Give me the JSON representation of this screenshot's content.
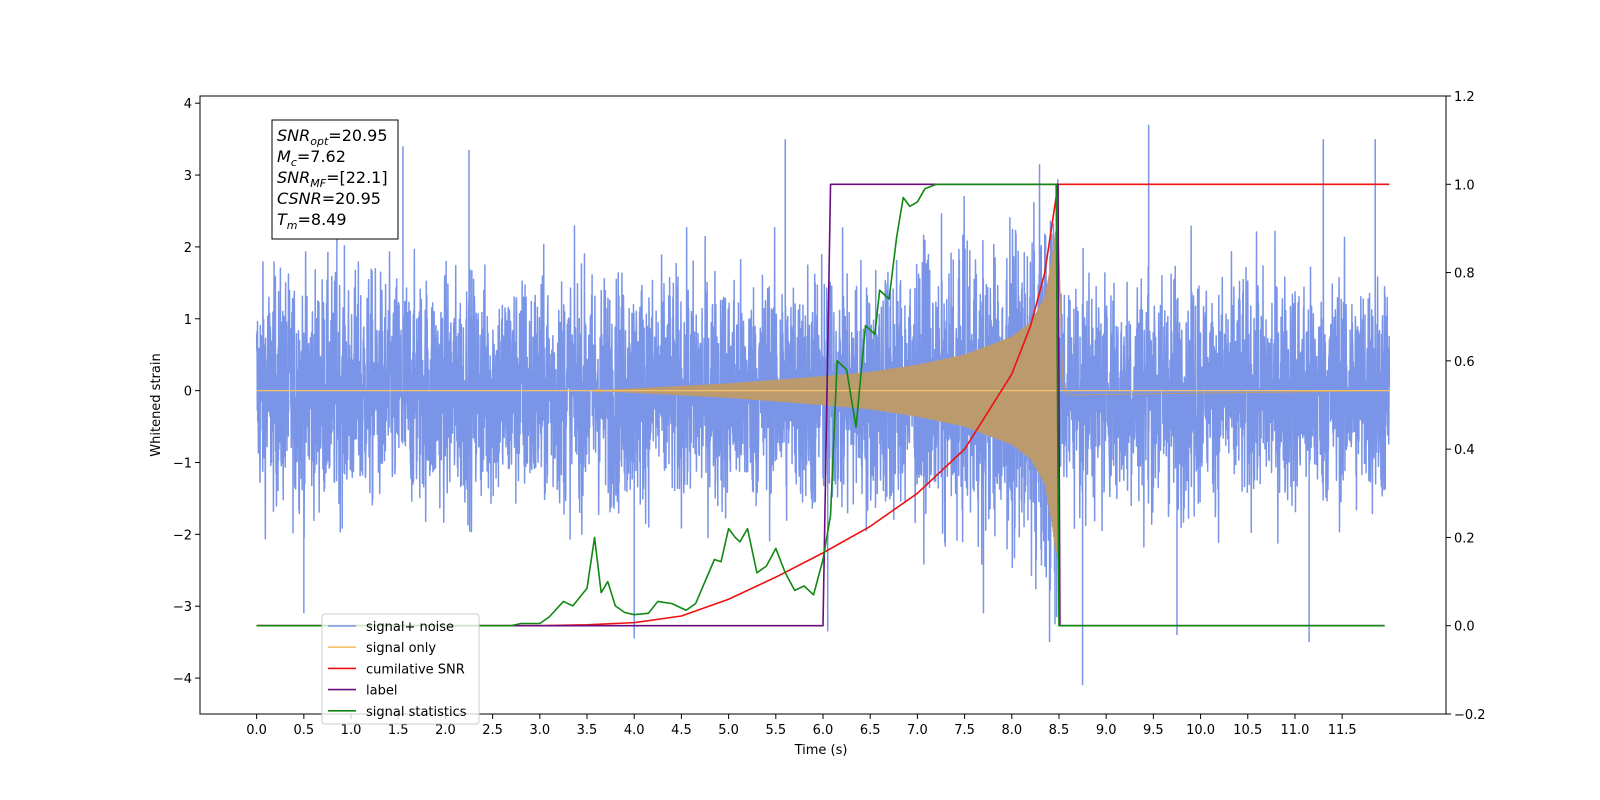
{
  "chart_data": {
    "type": "line",
    "xlabel": "Time (s)",
    "ylabel": "Whitened strain",
    "xlim": [
      -0.6,
      12.6
    ],
    "ylim_left": [
      -4.5,
      4.1
    ],
    "ylim_right": [
      -0.2,
      1.2
    ],
    "x_ticks": [
      0.0,
      0.5,
      1.0,
      1.5,
      2.0,
      2.5,
      3.0,
      3.5,
      4.0,
      4.5,
      5.0,
      5.5,
      6.0,
      6.5,
      7.0,
      7.5,
      8.0,
      8.5,
      9.0,
      9.5,
      10.0,
      10.5,
      11.0,
      11.5
    ],
    "x_tick_labels": [
      "0.0",
      "0.5",
      "1.0",
      "1.5",
      "2.0",
      "2.5",
      "3.0",
      "3.5",
      "4.0",
      "4.5",
      "5.0",
      "5.5",
      "6.0",
      "6.5",
      "7.0",
      "7.5",
      "8.0",
      "8.5",
      "9.0",
      "9.5",
      "10.0",
      "10.5",
      "11.0",
      "11.5"
    ],
    "y_left_ticks": [
      -4,
      -3,
      -2,
      -1,
      0,
      1,
      2,
      3,
      4
    ],
    "y_left_tick_labels": [
      "−4",
      "−3",
      "−2",
      "−1",
      "0",
      "1",
      "2",
      "3",
      "4"
    ],
    "y_right_ticks": [
      -0.2,
      0.0,
      0.2,
      0.4,
      0.6,
      0.8,
      1.0,
      1.2
    ],
    "y_right_tick_labels": [
      "−0.2",
      "0.0",
      "0.2",
      "0.4",
      "0.6",
      "0.8",
      "1.0",
      "1.2"
    ],
    "info_box": [
      {
        "base": "SNR",
        "sub": "opt",
        "rest": "=20.95"
      },
      {
        "base": "M",
        "sub": "c",
        "rest": "=7.62"
      },
      {
        "base": "SNR",
        "sub": "MF",
        "rest": "=[22.1]"
      },
      {
        "base": "CSNR",
        "sub": "",
        "rest": "=20.95"
      },
      {
        "base": "T",
        "sub": "m",
        "rest": "=8.49"
      }
    ],
    "legend_position": "lower-left",
    "series": [
      {
        "name": "signal+ noise",
        "axis": "left",
        "color": "#7a95e8",
        "kind": "noise",
        "x_range": [
          0.0,
          12.0
        ],
        "noise_band": [
          -2.2,
          2.3
        ],
        "extreme_peaks": [
          {
            "x": 0.5,
            "y": -3.1
          },
          {
            "x": 0.85,
            "y": 3.2
          },
          {
            "x": 1.55,
            "y": 3.4
          },
          {
            "x": 2.25,
            "y": 3.35
          },
          {
            "x": 4.0,
            "y": -3.45
          },
          {
            "x": 5.6,
            "y": 3.5
          },
          {
            "x": 6.05,
            "y": -3.35
          },
          {
            "x": 8.4,
            "y": -3.5
          },
          {
            "x": 8.75,
            "y": -4.1
          },
          {
            "x": 9.45,
            "y": 3.7
          },
          {
            "x": 9.75,
            "y": -3.4
          },
          {
            "x": 11.3,
            "y": 3.5
          },
          {
            "x": 11.15,
            "y": -3.5
          },
          {
            "x": 11.85,
            "y": 3.5
          },
          {
            "x": 7.7,
            "y": -3.1
          }
        ]
      },
      {
        "name": "signal only",
        "axis": "left",
        "color": "#f5c26b",
        "fill_color": "#bb9a6e",
        "kind": "chirp",
        "x_range": [
          0.0,
          12.0
        ],
        "chirp_start": 3.5,
        "merger": 8.49,
        "envelope": [
          [
            3.5,
            0.0
          ],
          [
            4.0,
            0.03
          ],
          [
            5.0,
            0.1
          ],
          [
            6.0,
            0.2
          ],
          [
            6.5,
            0.26
          ],
          [
            7.0,
            0.36
          ],
          [
            7.5,
            0.5
          ],
          [
            8.0,
            0.75
          ],
          [
            8.2,
            0.95
          ],
          [
            8.35,
            1.3
          ],
          [
            8.42,
            1.8
          ],
          [
            8.46,
            2.2
          ],
          [
            8.49,
            2.3
          ]
        ]
      },
      {
        "name": "cumilative SNR",
        "axis": "right",
        "color": "#ee1111",
        "kind": "line",
        "points": [
          [
            0.0,
            0.0
          ],
          [
            3.0,
            0.0
          ],
          [
            3.5,
            0.002
          ],
          [
            4.0,
            0.007
          ],
          [
            4.5,
            0.022
          ],
          [
            5.0,
            0.06
          ],
          [
            5.5,
            0.11
          ],
          [
            6.0,
            0.165
          ],
          [
            6.5,
            0.225
          ],
          [
            7.0,
            0.3
          ],
          [
            7.5,
            0.4
          ],
          [
            8.0,
            0.57
          ],
          [
            8.2,
            0.68
          ],
          [
            8.35,
            0.8
          ],
          [
            8.42,
            0.9
          ],
          [
            8.49,
            1.0
          ],
          [
            12.0,
            1.0
          ]
        ]
      },
      {
        "name": "label",
        "axis": "right",
        "color": "#6a0c7e",
        "kind": "line",
        "points": [
          [
            0.0,
            0.0
          ],
          [
            6.0,
            0.0
          ],
          [
            6.08,
            1.0
          ],
          [
            8.49,
            1.0
          ],
          [
            8.51,
            0.0
          ],
          [
            11.95,
            0.0
          ]
        ]
      },
      {
        "name": "signal statistics",
        "axis": "right",
        "color": "#118811",
        "kind": "line",
        "points": [
          [
            0.0,
            0.0
          ],
          [
            2.7,
            0.0
          ],
          [
            2.8,
            0.005
          ],
          [
            3.0,
            0.005
          ],
          [
            3.1,
            0.02
          ],
          [
            3.25,
            0.055
          ],
          [
            3.35,
            0.045
          ],
          [
            3.5,
            0.085
          ],
          [
            3.58,
            0.2
          ],
          [
            3.65,
            0.075
          ],
          [
            3.72,
            0.1
          ],
          [
            3.8,
            0.045
          ],
          [
            3.9,
            0.03
          ],
          [
            4.0,
            0.025
          ],
          [
            4.15,
            0.028
          ],
          [
            4.25,
            0.055
          ],
          [
            4.4,
            0.05
          ],
          [
            4.55,
            0.035
          ],
          [
            4.65,
            0.05
          ],
          [
            4.75,
            0.1
          ],
          [
            4.85,
            0.15
          ],
          [
            4.92,
            0.145
          ],
          [
            5.0,
            0.22
          ],
          [
            5.07,
            0.2
          ],
          [
            5.12,
            0.19
          ],
          [
            5.2,
            0.22
          ],
          [
            5.3,
            0.12
          ],
          [
            5.4,
            0.135
          ],
          [
            5.5,
            0.175
          ],
          [
            5.6,
            0.12
          ],
          [
            5.7,
            0.08
          ],
          [
            5.8,
            0.09
          ],
          [
            5.9,
            0.07
          ],
          [
            6.0,
            0.15
          ],
          [
            6.08,
            0.25
          ],
          [
            6.15,
            0.6
          ],
          [
            6.25,
            0.58
          ],
          [
            6.35,
            0.45
          ],
          [
            6.45,
            0.68
          ],
          [
            6.55,
            0.66
          ],
          [
            6.6,
            0.76
          ],
          [
            6.7,
            0.74
          ],
          [
            6.78,
            0.88
          ],
          [
            6.85,
            0.97
          ],
          [
            6.92,
            0.95
          ],
          [
            7.0,
            0.96
          ],
          [
            7.08,
            0.99
          ],
          [
            7.2,
            1.0
          ],
          [
            8.47,
            1.0
          ],
          [
            8.5,
            0.0
          ],
          [
            11.95,
            0.0
          ]
        ]
      }
    ]
  }
}
